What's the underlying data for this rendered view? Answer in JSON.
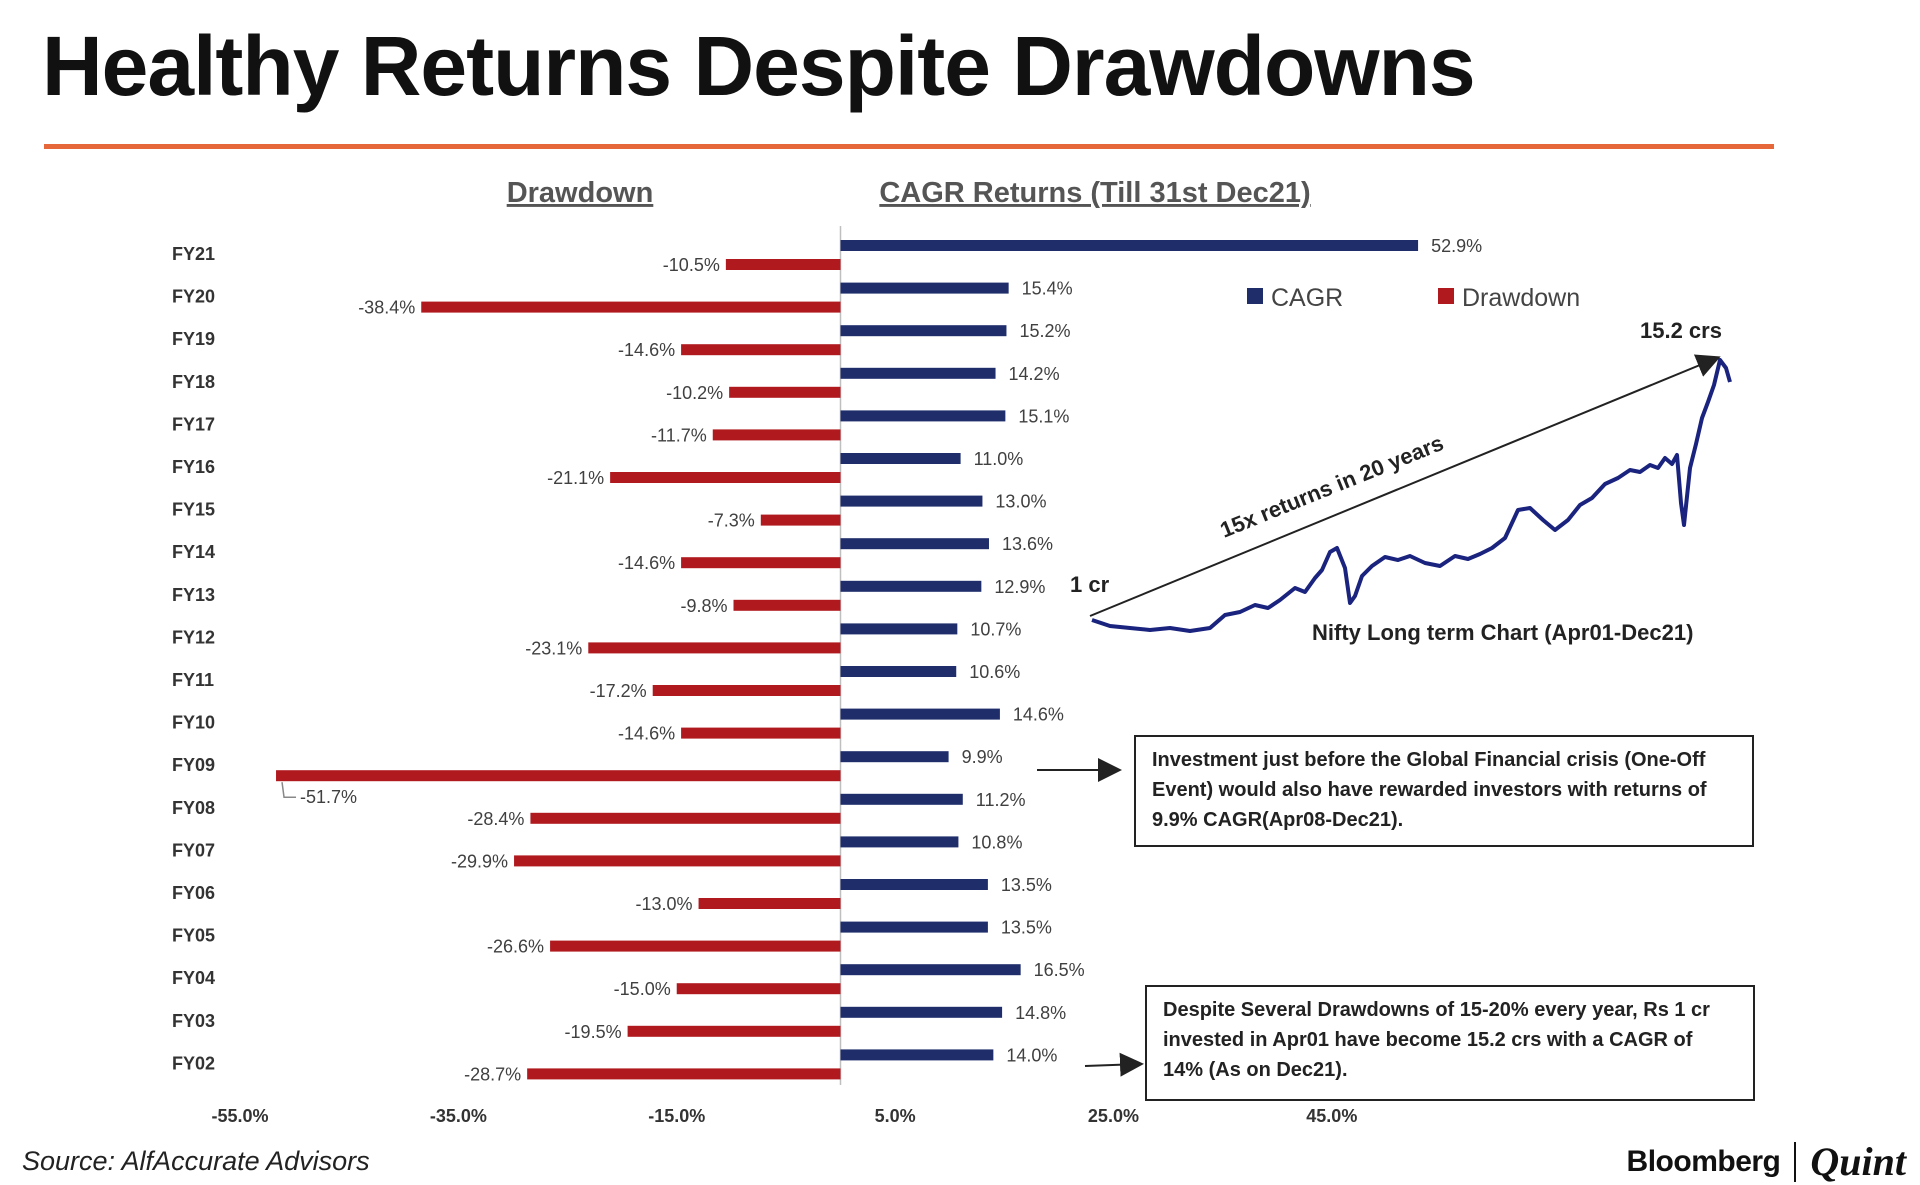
{
  "title": "Healthy Returns Despite Drawdowns",
  "chart_data": {
    "type": "bar",
    "orientation": "horizontal",
    "subtitles": {
      "left": "Drawdown",
      "right": "CAGR Returns (Till 31st Dec21)"
    },
    "categories": [
      "FY21",
      "FY20",
      "FY19",
      "FY18",
      "FY17",
      "FY16",
      "FY15",
      "FY14",
      "FY13",
      "FY12",
      "FY11",
      "FY10",
      "FY09",
      "FY08",
      "FY07",
      "FY06",
      "FY05",
      "FY04",
      "FY03",
      "FY02"
    ],
    "series": [
      {
        "name": "CAGR",
        "color": "#1f2d6b",
        "values": [
          52.9,
          15.4,
          15.2,
          14.2,
          15.1,
          11.0,
          13.0,
          13.6,
          12.9,
          10.7,
          10.6,
          14.6,
          9.9,
          11.2,
          10.8,
          13.5,
          13.5,
          16.5,
          14.8,
          14.0
        ],
        "labels": [
          "52.9%",
          "15.4%",
          "15.2%",
          "14.2%",
          "15.1%",
          "11.0%",
          "13.0%",
          "13.6%",
          "12.9%",
          "10.7%",
          "10.6%",
          "14.6%",
          "9.9%",
          "11.2%",
          "10.8%",
          "13.5%",
          "13.5%",
          "16.5%",
          "14.8%",
          "14.0%"
        ]
      },
      {
        "name": "Drawdown",
        "color": "#b01a1f",
        "values": [
          -10.5,
          -38.4,
          -14.6,
          -10.2,
          -11.7,
          -21.1,
          -7.3,
          -14.6,
          -9.8,
          -23.1,
          -17.2,
          -14.6,
          -51.7,
          -28.4,
          -29.9,
          -13.0,
          -26.6,
          -15.0,
          -19.5,
          -28.7
        ],
        "labels": [
          "-10.5%",
          "-38.4%",
          "-14.6%",
          "-10.2%",
          "-11.7%",
          "-21.1%",
          "-7.3%",
          "-14.6%",
          "-9.8%",
          "-23.1%",
          "-17.2%",
          "-14.6%",
          "-51.7%",
          "-28.4%",
          "-29.9%",
          "-13.0%",
          "-26.6%",
          "-15.0%",
          "-19.5%",
          "-28.7%"
        ]
      }
    ],
    "xlim": [
      -55.0,
      55.0
    ],
    "xticks": [
      -55,
      -35,
      -15,
      5,
      25,
      45
    ],
    "xtick_labels": [
      "-55.0%",
      "-35.0%",
      "-15.0%",
      "5.0%",
      "25.0%",
      "45.0%"
    ],
    "legend": [
      "CAGR",
      "Drawdown"
    ],
    "legend_position": "top-right",
    "inset": {
      "title": "Nifty Long term Chart (Apr01-Dec21)",
      "start_label": "1 cr",
      "end_label": "15.2 crs",
      "arrow_label": "15x returns in 20 years",
      "start_value": 1.0,
      "end_value": 15.2
    },
    "annotations": {
      "gfc_note": "Investment just before the Global Financial crisis (One-Off Event) would also have rewarded investors with returns of 9.9% CAGR(Apr08-Dec21).",
      "summary_note": "Despite Several Drawdowns of 15-20% every year, Rs 1 cr invested in Apr01 have become 15.2 crs with a CAGR of 14% (As on Dec21)."
    }
  },
  "source": "Source: AlfAccurate Advisors",
  "brand": {
    "bloomberg": "Bloomberg",
    "quint": "Quint"
  }
}
